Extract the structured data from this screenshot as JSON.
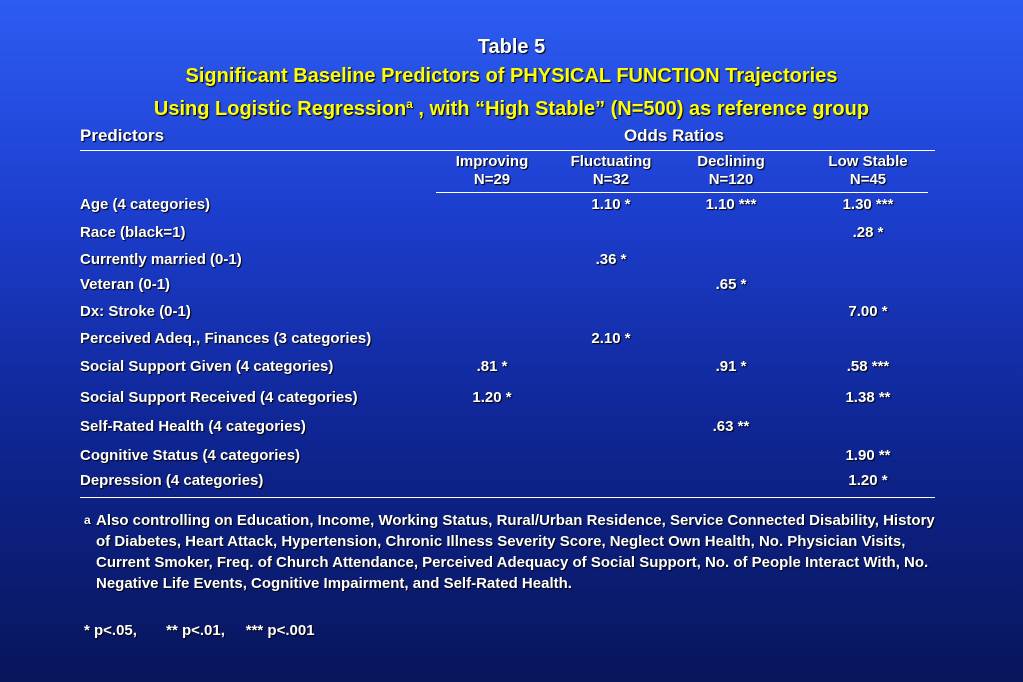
{
  "title": {
    "line1": "Table 5",
    "line2": "Significant Baseline Predictors of PHYSICAL FUNCTION  Trajectories",
    "line3_main": "Using Logistic Regression",
    "line3_sup": "a",
    "line3_rest": " , with “High Stable” (N=500) as reference group"
  },
  "table": {
    "predictors_header": "Predictors",
    "odds_header": "Odds Ratios",
    "columns": [
      {
        "name": "Improving",
        "n": "N=29"
      },
      {
        "name": "Fluctuating",
        "n": "N=32"
      },
      {
        "name": "Declining",
        "n": "N=120"
      },
      {
        "name": "Low Stable",
        "n": "N=45"
      }
    ],
    "rows": [
      {
        "predictor": "Age (4 categories)",
        "values": [
          "",
          "1.10 *",
          "1.10 ***",
          "1.30 ***"
        ]
      },
      {
        "predictor": "Race (black=1)",
        "values": [
          "",
          "",
          "",
          ".28 *"
        ]
      },
      {
        "predictor": "Currently married (0-1)",
        "values": [
          "",
          ".36 *",
          "",
          ""
        ]
      },
      {
        "predictor": "Veteran (0-1)",
        "values": [
          "",
          "",
          ".65 *",
          ""
        ]
      },
      {
        "predictor": "Dx: Stroke (0-1)",
        "values": [
          "",
          "",
          "",
          "7.00 *"
        ]
      },
      {
        "predictor": "Perceived Adeq., Finances (3 categories)",
        "values": [
          "",
          "2.10 *",
          "",
          ""
        ]
      },
      {
        "predictor": "Social Support Given (4 categories)",
        "values": [
          ".81 *",
          "",
          ".91 *",
          ".58 ***"
        ]
      },
      {
        "predictor": "Social Support Received (4 categories)",
        "values": [
          "1.20 *",
          "",
          "",
          "1.38 **"
        ]
      },
      {
        "predictor": "Self-Rated Health (4 categories)",
        "values": [
          "",
          "",
          ".63 **",
          ""
        ]
      },
      {
        "predictor": "Cognitive Status (4 categories)",
        "values": [
          "",
          "",
          "",
          "1.90 **"
        ]
      },
      {
        "predictor": "Depression  (4 categories)",
        "values": [
          "",
          "",
          "",
          "1.20 *"
        ]
      }
    ]
  },
  "footnote": {
    "mark": "a",
    "text": "Also controlling on Education, Income, Working Status, Rural/Urban Residence, Service Connected Disability, History of Diabetes, Heart Attack, Hypertension, Chronic Illness Severity Score, Neglect Own Health, No. Physician Visits, Current Smoker, Freq. of Church Attendance, Perceived Adequacy of Social Support, No. of People Interact With, No. Negative Life Events, Cognitive Impairment, and Self-Rated Health.",
    "significance": "* p<.05,       ** p<.01,     *** p<.001"
  }
}
